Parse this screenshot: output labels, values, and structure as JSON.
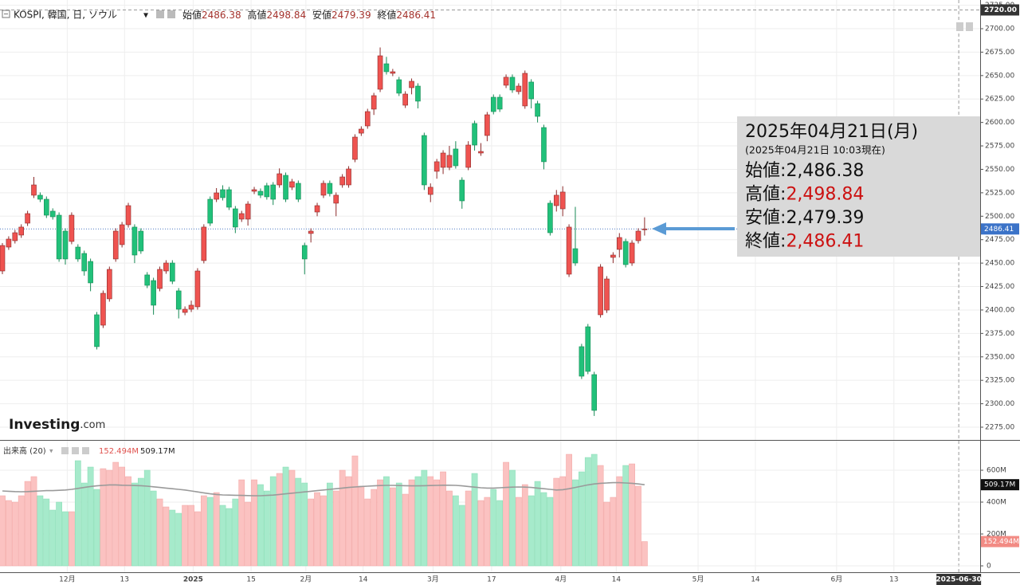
{
  "chart_data": [
    {
      "type": "candlestick",
      "title": "KOSPI, 韓国, 日, ソウル",
      "ohlc_labels": [
        "始値",
        "高値",
        "安値",
        "終値"
      ],
      "up_color": "#ef5350",
      "down_color": "#21c17a",
      "ylim": [
        2261.4,
        2730.6
      ],
      "yticks": [
        {
          "value": 2275,
          "label": "2275.00"
        },
        {
          "value": 2300,
          "label": "2300.00"
        },
        {
          "value": 2325,
          "label": "2325.00"
        },
        {
          "value": 2350,
          "label": "2350.00"
        },
        {
          "value": 2375,
          "label": "2375.00"
        },
        {
          "value": 2400,
          "label": "2400.00"
        },
        {
          "value": 2425,
          "label": "2425.00"
        },
        {
          "value": 2450,
          "label": "2450.00"
        },
        {
          "value": 2475,
          "label": "2475.00"
        },
        {
          "value": 2500,
          "label": "2500.00"
        },
        {
          "value": 2525,
          "label": "2525.00"
        },
        {
          "value": 2550,
          "label": "2550.00"
        },
        {
          "value": 2575,
          "label": "2575.00"
        },
        {
          "value": 2600,
          "label": "2600.00"
        },
        {
          "value": 2625,
          "label": "2625.00"
        },
        {
          "value": 2650,
          "label": "2650.00"
        },
        {
          "value": 2675,
          "label": "2675.00"
        },
        {
          "value": 2700,
          "label": "2700.00"
        },
        {
          "value": 2725,
          "label": "2725.00"
        }
      ],
      "xlim": [
        -0.38,
        155.3
      ],
      "xticks": [
        {
          "value": 10.3,
          "label": "12月"
        },
        {
          "value": 19.4,
          "label": "13"
        },
        {
          "value": 30.3,
          "label": "2025"
        },
        {
          "value": 39.5,
          "label": "15"
        },
        {
          "value": 48.2,
          "label": "2月"
        },
        {
          "value": 57.3,
          "label": "14"
        },
        {
          "value": 68.4,
          "label": "3月"
        },
        {
          "value": 77.7,
          "label": "17"
        },
        {
          "value": 88.7,
          "label": "4月"
        },
        {
          "value": 97.5,
          "label": "14"
        },
        {
          "value": 110.5,
          "label": "5月"
        },
        {
          "value": 119.6,
          "label": "14"
        },
        {
          "value": 132.5,
          "label": "6月"
        },
        {
          "value": 141.6,
          "label": "13"
        }
      ],
      "crosshair": {
        "value": 2720,
        "label": "2720.00"
      },
      "x_crosshair": {
        "value": 151.9,
        "label": "2025-06-30"
      },
      "ohlc": [
        [
          2441.6,
          2471.4,
          2438.2,
          2468.8
        ],
        [
          2467.1,
          2478.6,
          2464.1,
          2475.6
        ],
        [
          2473.9,
          2485.4,
          2470.9,
          2482.4
        ],
        [
          2479.9,
          2491.4,
          2476.9,
          2488.4
        ],
        [
          2492.6,
          2505.8,
          2489.6,
          2502.8
        ],
        [
          2522.4,
          2541.9,
          2519.4,
          2533.4
        ],
        [
          2522.4,
          2525.4,
          2515.1,
          2518.1
        ],
        [
          2518.1,
          2521.1,
          2498.1,
          2501.1
        ],
        [
          2505.4,
          2508.4,
          2496.4,
          2499.4
        ],
        [
          2501.1,
          2504.1,
          2451.4,
          2454.4
        ],
        [
          2484.1,
          2487.1,
          2448.4,
          2454.4
        ],
        [
          2473.1,
          2504.1,
          2470.1,
          2501.1
        ],
        [
          2467.1,
          2470.1,
          2451.4,
          2454.4
        ],
        [
          2460.3,
          2463.3,
          2436.6,
          2441.6
        ],
        [
          2451.8,
          2454.8,
          2420.0,
          2428.9
        ],
        [
          2394.9,
          2397.9,
          2357.9,
          2360.9
        ],
        [
          2383.8,
          2420.8,
          2380.8,
          2417.8
        ],
        [
          2411.9,
          2446.3,
          2408.9,
          2443.3
        ],
        [
          2454.4,
          2487.1,
          2451.4,
          2484.1
        ],
        [
          2469.7,
          2493.9,
          2466.7,
          2490.9
        ],
        [
          2490.9,
          2514.3,
          2487.9,
          2511.3
        ],
        [
          2488.4,
          2491.4,
          2450.0,
          2458.6
        ],
        [
          2484.1,
          2487.1,
          2459.9,
          2462.9
        ],
        [
          2437.4,
          2440.4,
          2423.3,
          2426.3
        ],
        [
          2431.4,
          2434.4,
          2395.0,
          2405.1
        ],
        [
          2422.9,
          2446.3,
          2419.9,
          2443.3
        ],
        [
          2441.6,
          2453.1,
          2438.6,
          2450.1
        ],
        [
          2450.1,
          2453.1,
          2427.6,
          2430.6
        ],
        [
          2420.4,
          2423.4,
          2391.0,
          2400.8
        ],
        [
          2397.4,
          2403.8,
          2394.4,
          2400.8
        ],
        [
          2400.8,
          2410.0,
          2397.8,
          2405.1
        ],
        [
          2403.4,
          2444.6,
          2400.4,
          2441.6
        ],
        [
          2452.7,
          2491.4,
          2449.7,
          2488.4
        ],
        [
          2518.1,
          2521.1,
          2489.6,
          2492.6
        ],
        [
          2518.1,
          2530.0,
          2515.1,
          2524.9
        ],
        [
          2528.3,
          2533.0,
          2516.8,
          2519.8
        ],
        [
          2528.3,
          2531.3,
          2506.6,
          2509.6
        ],
        [
          2507.9,
          2510.9,
          2482.0,
          2488.4
        ],
        [
          2496.9,
          2505.8,
          2493.9,
          2502.8
        ],
        [
          2496.9,
          2516.0,
          2490.0,
          2513.0
        ],
        [
          2526.6,
          2531.3,
          2523.6,
          2528.3
        ],
        [
          2526.6,
          2529.6,
          2519.4,
          2522.4
        ],
        [
          2532.6,
          2535.6,
          2517.7,
          2520.7
        ],
        [
          2533.4,
          2536.4,
          2512.0,
          2518.1
        ],
        [
          2533.4,
          2551.0,
          2530.4,
          2545.3
        ],
        [
          2543.6,
          2546.6,
          2515.1,
          2518.1
        ],
        [
          2530.9,
          2539.8,
          2527.9,
          2536.8
        ],
        [
          2535.1,
          2538.1,
          2515.1,
          2518.1
        ],
        [
          2468.8,
          2471.8,
          2438.0,
          2454.4
        ],
        [
          2481.6,
          2487.1,
          2472.0,
          2484.1
        ],
        [
          2504.5,
          2514.3,
          2500.0,
          2511.3
        ],
        [
          2522.4,
          2538.1,
          2519.4,
          2535.1
        ],
        [
          2535.1,
          2538.1,
          2521.1,
          2524.1
        ],
        [
          2513.9,
          2525.4,
          2500.0,
          2522.4
        ],
        [
          2533.4,
          2544.9,
          2530.4,
          2541.9
        ],
        [
          2533.4,
          2553.4,
          2530.4,
          2550.4
        ],
        [
          2560.6,
          2587.4,
          2557.6,
          2584.4
        ],
        [
          2588.6,
          2595.9,
          2585.6,
          2592.9
        ],
        [
          2596.3,
          2614.6,
          2593.3,
          2611.6
        ],
        [
          2614.2,
          2631.6,
          2608.0,
          2628.6
        ],
        [
          2635.4,
          2680.0,
          2632.4,
          2671.1
        ],
        [
          2662.6,
          2670.0,
          2651.1,
          2654.1
        ],
        [
          2652.4,
          2657.1,
          2649.4,
          2654.1
        ],
        [
          2645.6,
          2648.6,
          2628.2,
          2631.2
        ],
        [
          2618.4,
          2633.3,
          2615.4,
          2630.3
        ],
        [
          2637.1,
          2646.9,
          2630.0,
          2643.9
        ],
        [
          2638.8,
          2641.8,
          2615.0,
          2622.7
        ],
        [
          2586.1,
          2589.1,
          2528.0,
          2533.4
        ],
        [
          2523.2,
          2535.0,
          2515.0,
          2530.9
        ],
        [
          2547.9,
          2561.1,
          2540.0,
          2558.1
        ],
        [
          2552.1,
          2570.4,
          2545.0,
          2567.4
        ],
        [
          2552.1,
          2575.0,
          2549.1,
          2564.9
        ],
        [
          2571.7,
          2580.0,
          2550.8,
          2553.8
        ],
        [
          2538.5,
          2541.5,
          2508.0,
          2516.4
        ],
        [
          2552.1,
          2580.0,
          2549.1,
          2575.9
        ],
        [
          2598.9,
          2601.9,
          2570.0,
          2575.9
        ],
        [
          2567.4,
          2578.0,
          2564.4,
          2569.1
        ],
        [
          2586.1,
          2611.2,
          2580.0,
          2608.2
        ],
        [
          2626.9,
          2629.9,
          2608.6,
          2611.6
        ],
        [
          2626.9,
          2629.9,
          2611.2,
          2614.2
        ],
        [
          2639.7,
          2651.2,
          2636.7,
          2648.2
        ],
        [
          2648.2,
          2651.2,
          2631.6,
          2634.6
        ],
        [
          2632.9,
          2641.8,
          2629.9,
          2638.8
        ],
        [
          2617.6,
          2655.4,
          2614.6,
          2652.4
        ],
        [
          2643.1,
          2646.1,
          2615.0,
          2625.2
        ],
        [
          2620.1,
          2623.1,
          2600.0,
          2606.5
        ],
        [
          2594.6,
          2597.6,
          2550.0,
          2558.1
        ],
        [
          2513.9,
          2516.9,
          2479.4,
          2482.4
        ],
        [
          2511.3,
          2528.0,
          2505.0,
          2522.4
        ],
        [
          2507.9,
          2532.0,
          2500.0,
          2525.8
        ],
        [
          2438.2,
          2491.4,
          2435.2,
          2488.4
        ],
        [
          2465.4,
          2510.0,
          2447.1,
          2450.1
        ],
        [
          2360.9,
          2363.9,
          2326.4,
          2329.4
        ],
        [
          2382.1,
          2385.1,
          2331.5,
          2334.5
        ],
        [
          2331.1,
          2334.1,
          2287.0,
          2292.9
        ],
        [
          2394.9,
          2448.9,
          2391.9,
          2445.9
        ],
        [
          2399.9,
          2436.1,
          2396.9,
          2433.1
        ],
        [
          2456.1,
          2461.6,
          2450.0,
          2458.6
        ],
        [
          2464.6,
          2482.0,
          2456.0,
          2477.3
        ],
        [
          2473.1,
          2476.1,
          2445.4,
          2448.4
        ],
        [
          2450.1,
          2474.4,
          2447.1,
          2471.4
        ],
        [
          2473.9,
          2487.1,
          2470.9,
          2484.1
        ],
        [
          2486.38,
          2498.84,
          2479.39,
          2486.41
        ]
      ],
      "tooltip": {
        "date": "2025年04月21日(月)",
        "note": "(2025年04月21日 10:03現在)",
        "separator": ":",
        "rows": [
          {
            "label": "始値",
            "value": "2,486.38"
          },
          {
            "label": "高値",
            "value": "2,498.84"
          },
          {
            "label": "安値",
            "value": "2,479.39"
          },
          {
            "label": "終値",
            "value": "2,486.41"
          }
        ]
      },
      "logo": [
        "Investing",
        ".com"
      ]
    },
    {
      "type": "volume",
      "title": "出来高 (20)",
      "up_color": "#fbc2c1",
      "down_color": "#a6eacb",
      "ma_color": "#9a9a9a",
      "ylim": [
        -40,
        785
      ],
      "yticks": [
        0,
        {
          "value": 200,
          "label": "200M"
        },
        {
          "value": 400,
          "label": "400M"
        },
        {
          "value": 600,
          "label": "600M"
        }
      ],
      "volume_label": "152.494M",
      "ma_label": "509.17M",
      "values": [
        440,
        410,
        400,
        440,
        530,
        560,
        440,
        420,
        350,
        400,
        340,
        340,
        660,
        520,
        620,
        480,
        610,
        600,
        650,
        620,
        560,
        520,
        550,
        600,
        470,
        420,
        370,
        350,
        330,
        380,
        380,
        340,
        440,
        430,
        460,
        380,
        360,
        420,
        540,
        400,
        540,
        510,
        470,
        560,
        580,
        620,
        600,
        550,
        520,
        420,
        460,
        440,
        520,
        470,
        600,
        560,
        690,
        500,
        420,
        480,
        540,
        560,
        490,
        520,
        450,
        540,
        560,
        600,
        560,
        540,
        590,
        470,
        440,
        380,
        470,
        580,
        410,
        430,
        480,
        410,
        650,
        600,
        430,
        510,
        440,
        530,
        460,
        430,
        550,
        560,
        700,
        540,
        590,
        680,
        700,
        630,
        400,
        430,
        560,
        630,
        640,
        500,
        152.494
      ],
      "ma": [
        470,
        468,
        466,
        465,
        466,
        468,
        470,
        472,
        472,
        474,
        476,
        480,
        486,
        492,
        498,
        502,
        505,
        508,
        508,
        506,
        505,
        504,
        503,
        500,
        496,
        492,
        488,
        484,
        480,
        476,
        470,
        464,
        458,
        452,
        448,
        445,
        444,
        443,
        442,
        441,
        440,
        440,
        442,
        444,
        448,
        452,
        456,
        460,
        464,
        468,
        472,
        476,
        480,
        484,
        488,
        492,
        495,
        498,
        500,
        502,
        504,
        505,
        505,
        504,
        503,
        502,
        502,
        503,
        504,
        505,
        506,
        506,
        505,
        502,
        498,
        494,
        490,
        488,
        488,
        490,
        492,
        494,
        495,
        494,
        492,
        488,
        484,
        480,
        476,
        478,
        484,
        492,
        500,
        508,
        514,
        518,
        520,
        522,
        522,
        520,
        518,
        514,
        509.17
      ]
    }
  ]
}
